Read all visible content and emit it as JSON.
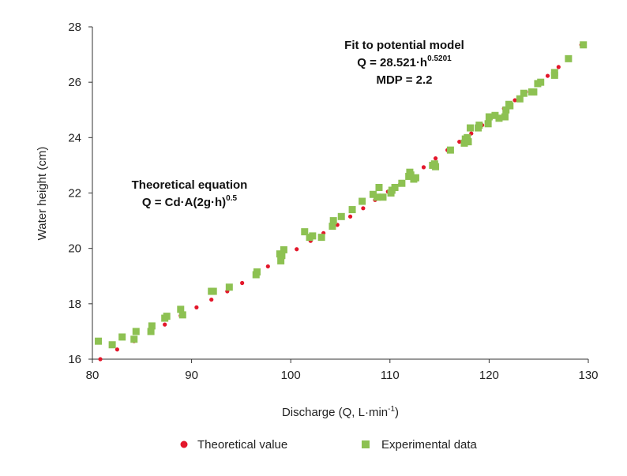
{
  "chart_data": {
    "type": "scatter",
    "xlabel": "Discharge (Q, L·min",
    "xlabel_sup": "-1",
    "xlabel_end": ")",
    "ylabel": "Water height (cm)",
    "xlim": [
      80,
      130
    ],
    "ylim": [
      16,
      28
    ],
    "x_ticks": [
      80,
      90,
      100,
      110,
      120,
      130
    ],
    "y_ticks": [
      16,
      18,
      20,
      22,
      24,
      26,
      28
    ],
    "grid": false,
    "legend_position": "bottom",
    "annotations": {
      "fit_title": "Fit to potential model",
      "fit_eq": "Q = 28.521·h",
      "fit_exp": "0.5201",
      "fit_mdp": "MDP = 2.2",
      "theory_title": "Theoretical equation",
      "theory_eq": "Q = Cd·A(2g·h)",
      "theory_exp": "0.5"
    },
    "series": [
      {
        "name": "Theoretical value",
        "marker": "circle",
        "color": "#e3172b",
        "points": [
          [
            80.8,
            16.0
          ],
          [
            82.5,
            16.35
          ],
          [
            84.2,
            16.65
          ],
          [
            85.9,
            16.97
          ],
          [
            87.3,
            17.25
          ],
          [
            88.9,
            17.57
          ],
          [
            90.5,
            17.87
          ],
          [
            92.0,
            18.15
          ],
          [
            93.6,
            18.45
          ],
          [
            95.1,
            18.75
          ],
          [
            96.6,
            19.05
          ],
          [
            97.7,
            19.35
          ],
          [
            99.2,
            19.65
          ],
          [
            100.6,
            19.97
          ],
          [
            102.0,
            20.27
          ],
          [
            103.3,
            20.55
          ],
          [
            104.7,
            20.85
          ],
          [
            106.0,
            21.15
          ],
          [
            107.3,
            21.45
          ],
          [
            108.5,
            21.75
          ],
          [
            109.8,
            22.05
          ],
          [
            111.0,
            22.3
          ],
          [
            112.2,
            22.6
          ],
          [
            113.4,
            22.93
          ],
          [
            114.6,
            23.25
          ],
          [
            115.8,
            23.55
          ],
          [
            117.0,
            23.85
          ],
          [
            118.2,
            24.15
          ],
          [
            119.3,
            24.45
          ],
          [
            120.4,
            24.75
          ],
          [
            121.5,
            25.05
          ],
          [
            122.6,
            25.35
          ],
          [
            123.7,
            25.65
          ],
          [
            124.8,
            25.93
          ],
          [
            125.9,
            26.23
          ],
          [
            127.0,
            26.55
          ],
          [
            128.0,
            26.85
          ],
          [
            129.3,
            27.35
          ]
        ]
      },
      {
        "name": "Experimental data",
        "marker": "square",
        "color": "#8dc152",
        "points": [
          [
            80.6,
            16.65
          ],
          [
            82.0,
            16.52
          ],
          [
            83.0,
            16.8
          ],
          [
            84.2,
            16.72
          ],
          [
            84.4,
            17.0
          ],
          [
            85.9,
            17.0
          ],
          [
            86.0,
            17.2
          ],
          [
            87.3,
            17.48
          ],
          [
            87.5,
            17.55
          ],
          [
            88.9,
            17.8
          ],
          [
            89.1,
            17.6
          ],
          [
            92.0,
            18.45
          ],
          [
            92.2,
            18.45
          ],
          [
            93.8,
            18.6
          ],
          [
            96.5,
            19.05
          ],
          [
            96.6,
            19.15
          ],
          [
            98.9,
            19.8
          ],
          [
            99.1,
            19.75
          ],
          [
            99.3,
            19.95
          ],
          [
            99.0,
            19.55
          ],
          [
            101.4,
            20.6
          ],
          [
            101.9,
            20.4
          ],
          [
            102.2,
            20.45
          ],
          [
            103.1,
            20.4
          ],
          [
            104.2,
            20.8
          ],
          [
            104.3,
            21.0
          ],
          [
            105.1,
            21.15
          ],
          [
            106.2,
            21.4
          ],
          [
            107.2,
            21.7
          ],
          [
            108.3,
            21.95
          ],
          [
            108.7,
            21.85
          ],
          [
            108.9,
            22.2
          ],
          [
            109.3,
            21.85
          ],
          [
            110.1,
            22.0
          ],
          [
            110.2,
            22.1
          ],
          [
            110.5,
            22.2
          ],
          [
            111.2,
            22.35
          ],
          [
            111.9,
            22.6
          ],
          [
            112.0,
            22.75
          ],
          [
            112.1,
            22.65
          ],
          [
            112.4,
            22.5
          ],
          [
            112.6,
            22.55
          ],
          [
            114.3,
            23.0
          ],
          [
            114.5,
            23.05
          ],
          [
            114.6,
            22.95
          ],
          [
            116.1,
            23.55
          ],
          [
            117.5,
            23.8
          ],
          [
            117.6,
            23.95
          ],
          [
            117.8,
            24.0
          ],
          [
            117.9,
            23.85
          ],
          [
            118.1,
            24.35
          ],
          [
            118.9,
            24.35
          ],
          [
            119.0,
            24.45
          ],
          [
            119.9,
            24.5
          ],
          [
            120.0,
            24.75
          ],
          [
            120.6,
            24.8
          ],
          [
            121.0,
            24.7
          ],
          [
            121.6,
            24.75
          ],
          [
            121.7,
            25.0
          ],
          [
            122.0,
            25.2
          ],
          [
            122.1,
            25.15
          ],
          [
            123.1,
            25.4
          ],
          [
            123.5,
            25.6
          ],
          [
            124.3,
            25.65
          ],
          [
            124.5,
            25.65
          ],
          [
            124.9,
            25.95
          ],
          [
            125.2,
            26.0
          ],
          [
            126.6,
            26.25
          ],
          [
            126.6,
            26.35
          ],
          [
            128.0,
            26.85
          ],
          [
            129.5,
            27.35
          ]
        ]
      }
    ]
  }
}
